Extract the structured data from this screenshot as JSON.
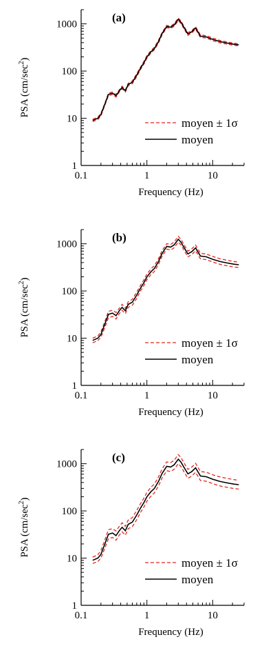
{
  "chart_data": [
    {
      "type": "line",
      "panel_label": "(a)",
      "xlabel": "Frequency (Hz)",
      "ylabel_main": "PSA (cm/sec",
      "ylabel_sup": "2",
      "ylabel_end": ")",
      "xscale": "log",
      "yscale": "log",
      "xlim": [
        0.1,
        30
      ],
      "ylim": [
        1,
        2000
      ],
      "x_ticks": [
        "0.1",
        "1",
        "10"
      ],
      "y_ticks": [
        "1",
        "10",
        "100",
        "1000"
      ],
      "legend_position": "lower-right",
      "colors": {
        "mean": "#000000",
        "band": "#e0261f"
      },
      "series": [
        {
          "name": "moyen",
          "x": [
            0.15,
            0.18,
            0.2,
            0.23,
            0.26,
            0.3,
            0.34,
            0.38,
            0.42,
            0.47,
            0.52,
            0.6,
            0.7,
            0.8,
            0.9,
            1.0,
            1.15,
            1.3,
            1.5,
            1.7,
            2.0,
            2.3,
            2.6,
            3.0,
            3.3,
            3.7,
            4.2,
            4.8,
            5.5,
            6.5,
            8.0,
            10,
            13,
            17,
            21,
            25
          ],
          "y": [
            9,
            10,
            12,
            20,
            32,
            34,
            30,
            38,
            45,
            38,
            52,
            58,
            82,
            115,
            150,
            200,
            255,
            300,
            420,
            620,
            880,
            850,
            950,
            1250,
            1080,
            820,
            610,
            680,
            820,
            550,
            530,
            470,
            420,
            390,
            370,
            360
          ]
        },
        {
          "name": "moyen ± 1σ",
          "x": [
            0.15,
            0.18,
            0.2,
            0.23,
            0.26,
            0.3,
            0.34,
            0.38,
            0.42,
            0.47,
            0.52,
            0.6,
            0.7,
            0.8,
            0.9,
            1.0,
            1.15,
            1.3,
            1.5,
            1.7,
            2.0,
            2.3,
            2.6,
            3.0,
            3.3,
            3.7,
            4.2,
            4.8,
            5.5,
            6.5,
            8.0,
            10,
            13,
            17,
            21,
            25
          ],
          "y_upper": [
            9.5,
            10.6,
            12.8,
            21,
            34,
            36,
            32,
            40,
            48,
            40,
            55,
            62,
            88,
            122,
            160,
            212,
            270,
            320,
            450,
            660,
            930,
            900,
            1010,
            1330,
            1150,
            870,
            650,
            720,
            870,
            585,
            560,
            500,
            445,
            410,
            390,
            378
          ],
          "y_lower": [
            8.5,
            9.4,
            11.2,
            19,
            30,
            32,
            28,
            36,
            42,
            36,
            49,
            54,
            76,
            108,
            140,
            188,
            240,
            282,
            392,
            580,
            830,
            800,
            890,
            1170,
            1010,
            770,
            570,
            640,
            770,
            515,
            500,
            442,
            395,
            370,
            350,
            342
          ]
        }
      ],
      "legend": [
        "moyen ± 1σ",
        "moyen"
      ]
    },
    {
      "type": "line",
      "panel_label": "(b)",
      "xlabel": "Frequency (Hz)",
      "ylabel_main": "PSA (cm/sec",
      "ylabel_sup": "2",
      "ylabel_end": ")",
      "xscale": "log",
      "yscale": "log",
      "xlim": [
        0.1,
        30
      ],
      "ylim": [
        1,
        2000
      ],
      "x_ticks": [
        "0.1",
        "1",
        "10"
      ],
      "y_ticks": [
        "1",
        "10",
        "100",
        "1000"
      ],
      "legend_position": "lower-right",
      "colors": {
        "mean": "#000000",
        "band": "#e0261f"
      },
      "series": [
        {
          "name": "moyen",
          "x": [
            0.15,
            0.18,
            0.2,
            0.23,
            0.26,
            0.3,
            0.34,
            0.38,
            0.42,
            0.47,
            0.52,
            0.6,
            0.7,
            0.8,
            0.9,
            1.0,
            1.15,
            1.3,
            1.5,
            1.7,
            2.0,
            2.3,
            2.6,
            3.0,
            3.3,
            3.7,
            4.2,
            4.8,
            5.5,
            6.5,
            8.0,
            10,
            13,
            17,
            21,
            25
          ],
          "y": [
            9,
            10,
            12,
            20,
            32,
            34,
            30,
            38,
            45,
            38,
            52,
            58,
            82,
            115,
            150,
            200,
            255,
            300,
            420,
            620,
            880,
            850,
            950,
            1250,
            1080,
            820,
            610,
            680,
            820,
            550,
            530,
            470,
            420,
            390,
            370,
            360
          ]
        },
        {
          "name": "moyen ± 1σ",
          "x": [
            0.15,
            0.18,
            0.2,
            0.23,
            0.26,
            0.3,
            0.34,
            0.38,
            0.42,
            0.47,
            0.52,
            0.6,
            0.7,
            0.8,
            0.9,
            1.0,
            1.15,
            1.3,
            1.5,
            1.7,
            2.0,
            2.3,
            2.6,
            3.0,
            3.3,
            3.7,
            4.2,
            4.8,
            5.5,
            6.5,
            8.0,
            10,
            13,
            17,
            21,
            25
          ],
          "y_upper": [
            10,
            11.2,
            13.6,
            23,
            37,
            39,
            35,
            43,
            52,
            43,
            59,
            67,
            95,
            132,
            172,
            230,
            292,
            345,
            485,
            712,
            1005,
            975,
            1090,
            1440,
            1240,
            940,
            700,
            780,
            940,
            630,
            605,
            540,
            480,
            445,
            422,
            408
          ],
          "y_lower": [
            8,
            8.9,
            10.5,
            17,
            27,
            29,
            25.5,
            33,
            39,
            33,
            45,
            50,
            70,
            100,
            130,
            174,
            222,
            260,
            365,
            540,
            770,
            740,
            825,
            1085,
            940,
            715,
            530,
            592,
            712,
            480,
            462,
            410,
            366,
            340,
            322,
            315
          ]
        }
      ],
      "legend": [
        "moyen ± 1σ",
        "moyen"
      ]
    },
    {
      "type": "line",
      "panel_label": "(c)",
      "xlabel": "Frequency (Hz)",
      "ylabel_main": "PSA (cm/sec",
      "ylabel_sup": "2",
      "ylabel_end": ")",
      "xscale": "log",
      "yscale": "log",
      "xlim": [
        0.1,
        30
      ],
      "ylim": [
        1,
        2000
      ],
      "x_ticks": [
        "0.1",
        "1",
        "10"
      ],
      "y_ticks": [
        "1",
        "10",
        "100",
        "1000"
      ],
      "legend_position": "lower-right",
      "colors": {
        "mean": "#000000",
        "band": "#e0261f"
      },
      "series": [
        {
          "name": "moyen",
          "x": [
            0.15,
            0.18,
            0.2,
            0.23,
            0.26,
            0.3,
            0.34,
            0.38,
            0.42,
            0.47,
            0.52,
            0.6,
            0.7,
            0.8,
            0.9,
            1.0,
            1.15,
            1.3,
            1.5,
            1.7,
            2.0,
            2.3,
            2.6,
            3.0,
            3.3,
            3.7,
            4.2,
            4.8,
            5.5,
            6.5,
            8.0,
            10,
            13,
            17,
            21,
            25
          ],
          "y": [
            9,
            10,
            12,
            20,
            32,
            34,
            30,
            38,
            45,
            38,
            52,
            58,
            82,
            115,
            150,
            200,
            255,
            300,
            420,
            620,
            880,
            850,
            950,
            1250,
            1080,
            820,
            610,
            680,
            820,
            550,
            530,
            470,
            420,
            390,
            370,
            360
          ]
        },
        {
          "name": "moyen ± 1σ",
          "x": [
            0.15,
            0.18,
            0.2,
            0.23,
            0.26,
            0.3,
            0.34,
            0.38,
            0.42,
            0.47,
            0.52,
            0.6,
            0.7,
            0.8,
            0.9,
            1.0,
            1.15,
            1.3,
            1.5,
            1.7,
            2.0,
            2.3,
            2.6,
            3.0,
            3.3,
            3.7,
            4.2,
            4.8,
            5.5,
            6.5,
            8.0,
            10,
            13,
            17,
            21,
            25
          ],
          "y_upper": [
            10.5,
            11.8,
            14.5,
            24.5,
            40,
            42,
            37.5,
            47,
            56,
            47,
            64,
            72,
            103,
            142,
            186,
            248,
            318,
            372,
            525,
            772,
            1090,
            1055,
            1180,
            1560,
            1345,
            1020,
            760,
            846,
            1020,
            685,
            660,
            585,
            522,
            485,
            460,
            446
          ],
          "y_lower": [
            7.7,
            8.5,
            10,
            16.3,
            25.6,
            27.5,
            24,
            30.7,
            36.2,
            30.7,
            42,
            46.5,
            65.4,
            93,
            121,
            161,
            205,
            242,
            336,
            498,
            710,
            685,
            765,
            1000,
            868,
            660,
            490,
            548,
            658,
            442,
            426,
            378,
            338,
            314,
            298,
            290
          ]
        }
      ],
      "legend": [
        "moyen ± 1σ",
        "moyen"
      ]
    }
  ]
}
